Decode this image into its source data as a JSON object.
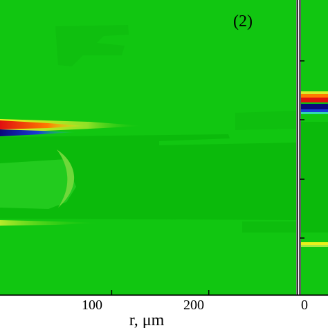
{
  "chart_data": {
    "type": "heatmap",
    "title": "",
    "panels": [
      {
        "label": "(2)",
        "xlabel": "r, μm",
        "x_tick_labels": [
          "100",
          "200"
        ],
        "x_ticks": [
          100,
          200
        ],
        "xlim": [
          -15,
          290
        ]
      },
      {
        "label": "",
        "xlabel": "",
        "x_tick_labels": [
          "0"
        ],
        "x_ticks": [
          0
        ]
      }
    ],
    "colors": {
      "background": "#11c611",
      "light_green": "#2fd02a",
      "dark_green": "#08b808",
      "red": "#e01010",
      "orange": "#ff7a00",
      "yellow": "#f2f21a",
      "dark_blue": "#0a0a7a",
      "blue": "#1a3cd8",
      "cyan": "#30d8b0"
    }
  }
}
